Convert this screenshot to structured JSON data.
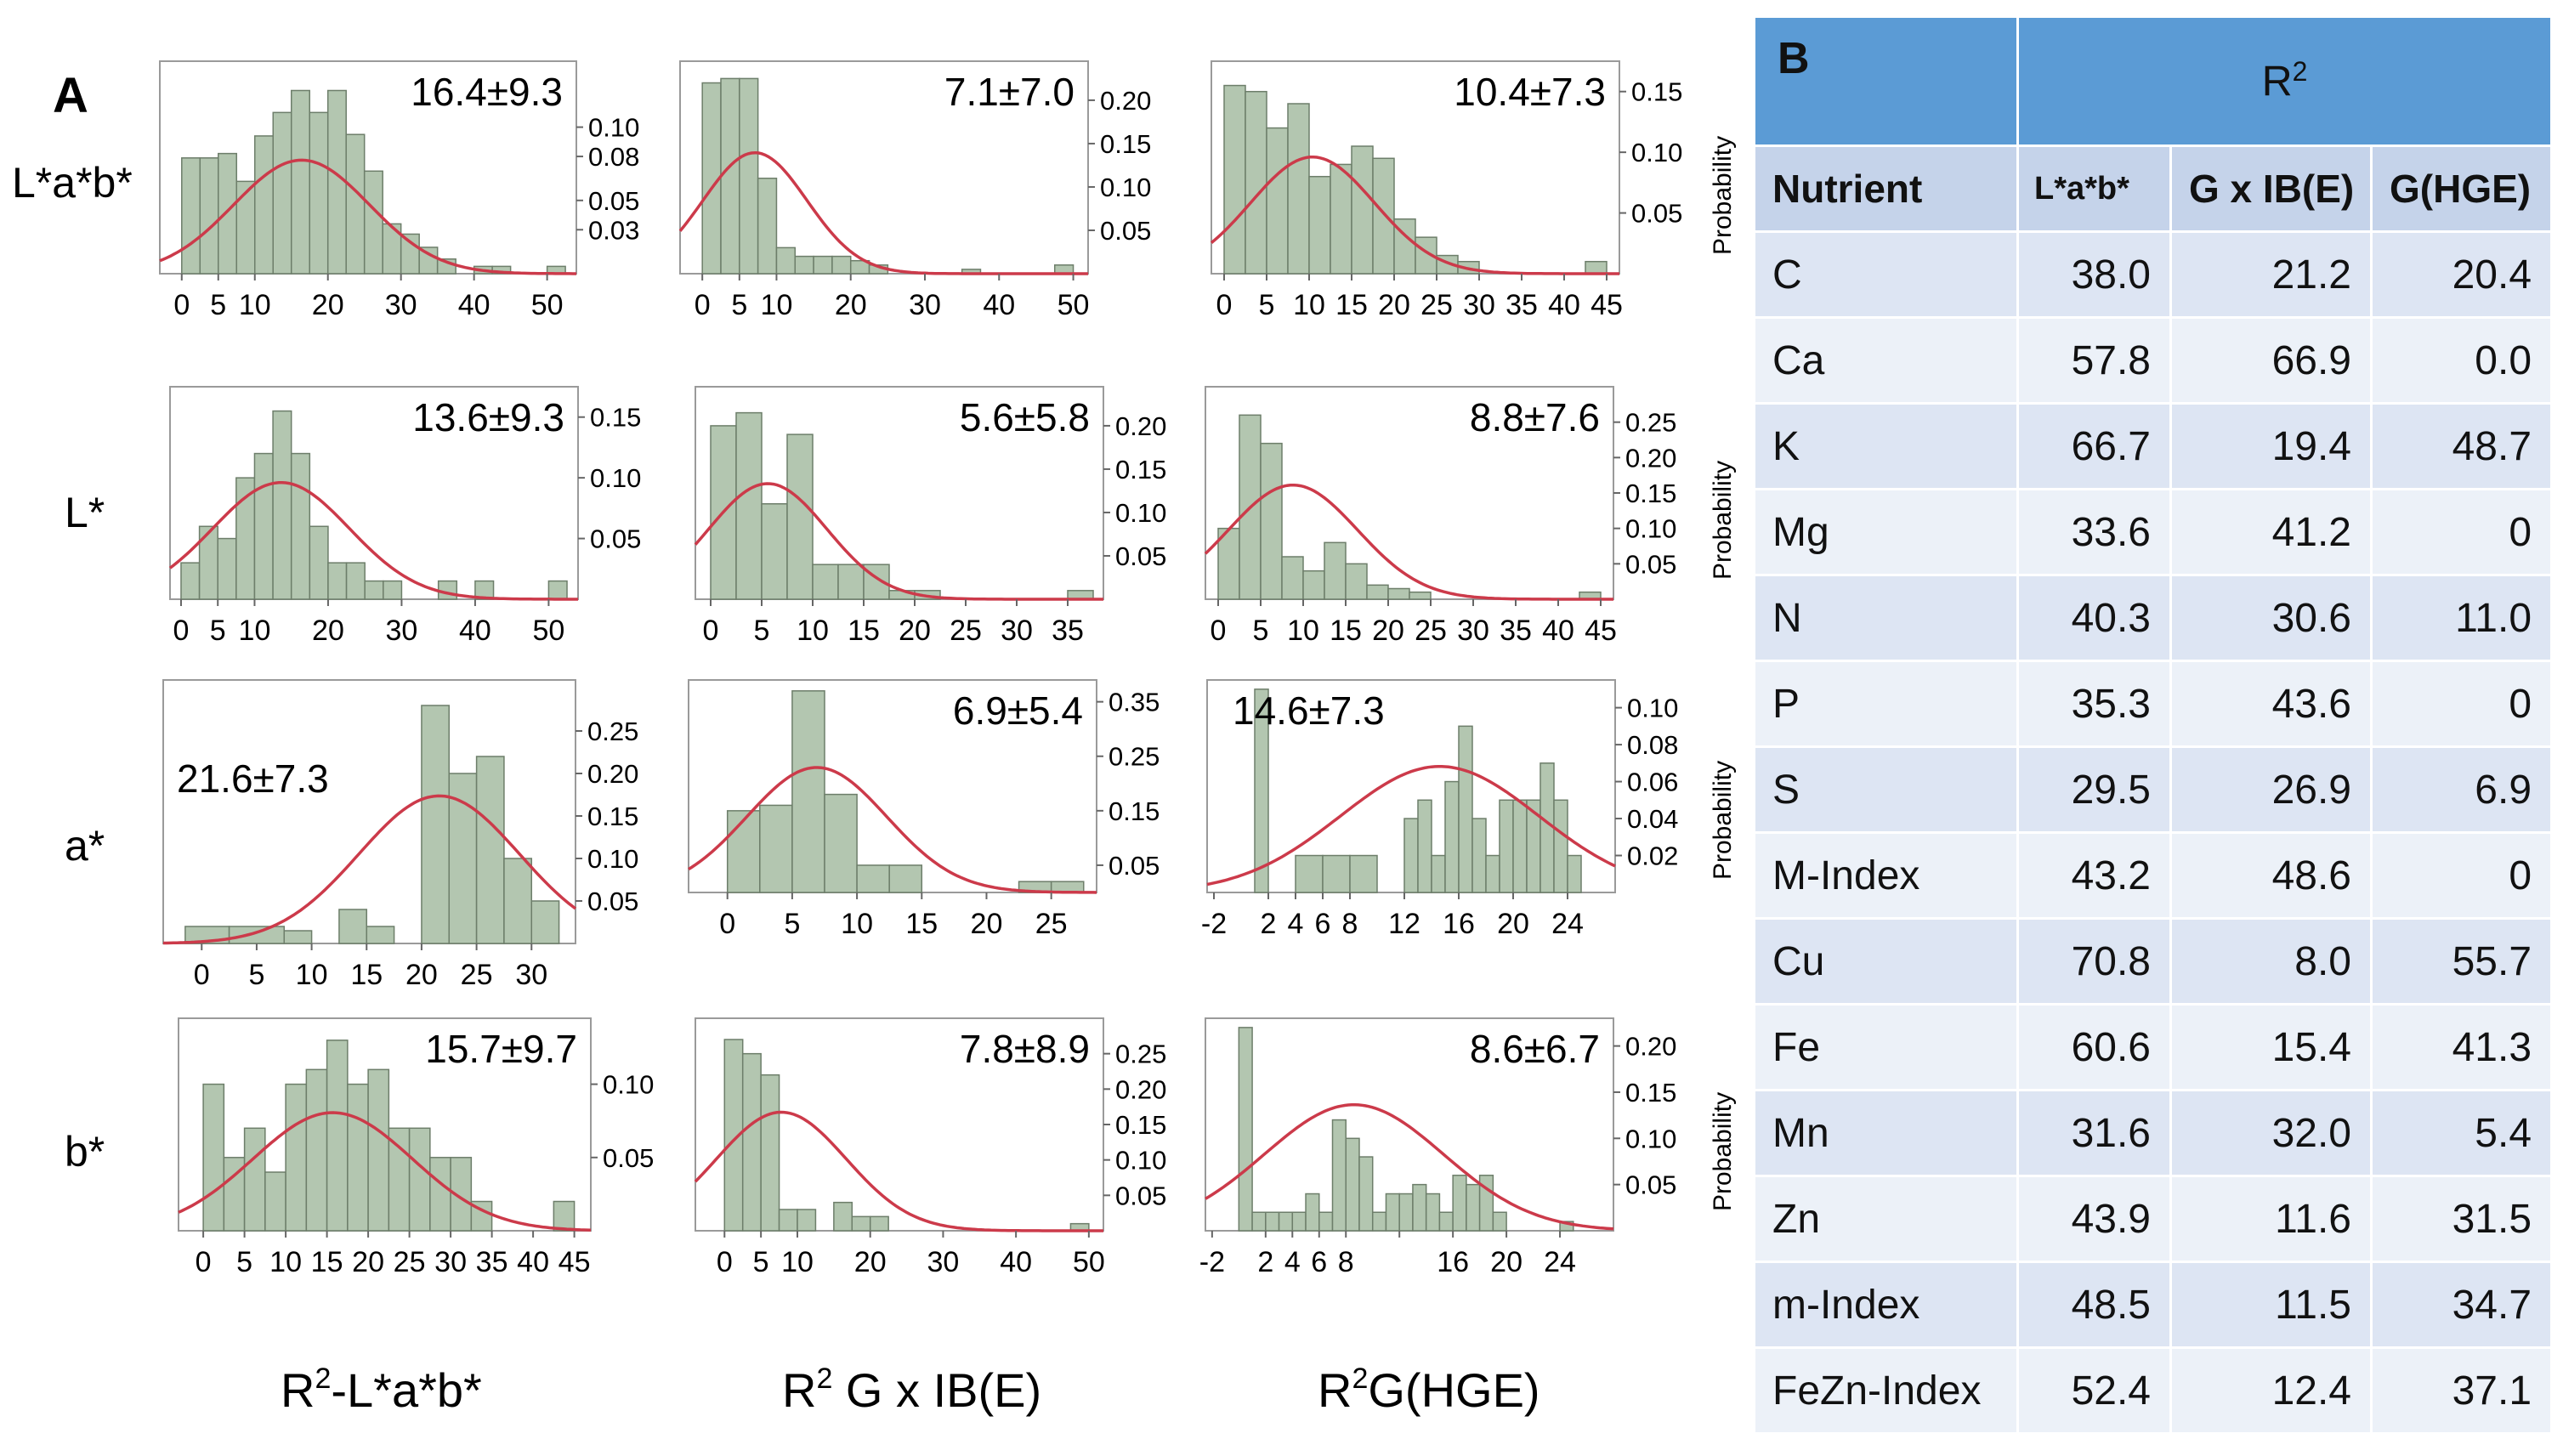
{
  "panel_a": {
    "label": "A",
    "row_labels": [
      "L*a*b*",
      "L*",
      "a*",
      "b*"
    ],
    "column_labels": [
      {
        "prefix": "R",
        "sup": "2",
        "suffix": "-L*a*b*"
      },
      {
        "prefix": "R",
        "sup": "2",
        "suffix": " G x IB(E)"
      },
      {
        "prefix": "R",
        "sup": "2",
        "suffix": "G(HGE)"
      }
    ],
    "side_label": "Probability"
  },
  "chart_data": [
    {
      "type": "bar",
      "id": "r0c0",
      "title": "16.4±9.3",
      "mean": 16.4,
      "sd": 9.3,
      "xlim": [
        -3,
        54
      ],
      "ylim": [
        0,
        0.145
      ],
      "xticks": [
        0,
        5,
        10,
        20,
        30,
        40,
        50
      ],
      "yticks": [
        0.03,
        0.05,
        0.08,
        0.1
      ],
      "ytick_labels": [
        "0.03",
        "0.05",
        "0.08",
        "0.10"
      ],
      "bins": [
        [
          0,
          2.5,
          0.079
        ],
        [
          2.5,
          5,
          0.079
        ],
        [
          5,
          7.5,
          0.082
        ],
        [
          7.5,
          10,
          0.063
        ],
        [
          10,
          12.5,
          0.094
        ],
        [
          12.5,
          15,
          0.11
        ],
        [
          15,
          17.5,
          0.125
        ],
        [
          17.5,
          20,
          0.11
        ],
        [
          20,
          22.5,
          0.125
        ],
        [
          22.5,
          25,
          0.095
        ],
        [
          25,
          27.5,
          0.07
        ],
        [
          27.5,
          30,
          0.034
        ],
        [
          30,
          32.5,
          0.027
        ],
        [
          32.5,
          35,
          0.018
        ],
        [
          35,
          37.5,
          0.01
        ],
        [
          40,
          42.5,
          0.005
        ],
        [
          42.5,
          45,
          0.005
        ],
        [
          50,
          52.5,
          0.005
        ]
      ]
    },
    {
      "type": "bar",
      "id": "r0c1",
      "title": "7.1±7.0",
      "mean": 7.1,
      "sd": 7.0,
      "xlim": [
        -3,
        52
      ],
      "ylim": [
        0,
        0.245
      ],
      "xticks": [
        0,
        5,
        10,
        20,
        30,
        40,
        50
      ],
      "yticks": [
        0.05,
        0.1,
        0.15,
        0.2
      ],
      "ytick_labels": [
        "0.05",
        "0.10",
        "0.15",
        "0.20"
      ],
      "bins": [
        [
          0,
          2.5,
          0.22
        ],
        [
          2.5,
          5,
          0.225
        ],
        [
          5,
          7.5,
          0.225
        ],
        [
          7.5,
          10,
          0.11
        ],
        [
          10,
          12.5,
          0.03
        ],
        [
          12.5,
          15,
          0.02
        ],
        [
          15,
          17.5,
          0.02
        ],
        [
          17.5,
          20,
          0.02
        ],
        [
          20,
          22.5,
          0.015
        ],
        [
          22.5,
          25,
          0.01
        ],
        [
          35,
          37.5,
          0.005
        ],
        [
          47.5,
          50,
          0.01
        ]
      ]
    },
    {
      "type": "bar",
      "id": "r0c2",
      "title": "10.4±7.3",
      "mean": 10.4,
      "sd": 7.3,
      "xlim": [
        -1.5,
        46.5
      ],
      "ylim": [
        0,
        0.175
      ],
      "xticks": [
        0,
        5,
        10,
        15,
        20,
        25,
        30,
        35,
        40,
        45
      ],
      "yticks": [
        0.05,
        0.1,
        0.15
      ],
      "ytick_labels": [
        "0.05",
        "0.10",
        "0.15"
      ],
      "bins": [
        [
          0,
          2.5,
          0.155
        ],
        [
          2.5,
          5,
          0.15
        ],
        [
          5,
          7.5,
          0.12
        ],
        [
          7.5,
          10,
          0.14
        ],
        [
          10,
          12.5,
          0.08
        ],
        [
          12.5,
          15,
          0.09
        ],
        [
          15,
          17.5,
          0.105
        ],
        [
          17.5,
          20,
          0.095
        ],
        [
          20,
          22.5,
          0.045
        ],
        [
          22.5,
          25,
          0.03
        ],
        [
          25,
          27.5,
          0.015
        ],
        [
          27.5,
          30,
          0.01
        ],
        [
          42.5,
          45,
          0.01
        ]
      ]
    },
    {
      "type": "bar",
      "id": "r1c0",
      "title": "13.6±9.3",
      "mean": 13.6,
      "sd": 9.3,
      "xlim": [
        -1.5,
        54
      ],
      "ylim": [
        0,
        0.175
      ],
      "xticks": [
        0,
        5,
        10,
        20,
        30,
        40,
        50
      ],
      "yticks": [
        0.05,
        0.1,
        0.15
      ],
      "ytick_labels": [
        "0.05",
        "0.10",
        "0.15"
      ],
      "bins": [
        [
          0,
          2.5,
          0.03
        ],
        [
          2.5,
          5,
          0.06
        ],
        [
          5,
          7.5,
          0.05
        ],
        [
          7.5,
          10,
          0.1
        ],
        [
          10,
          12.5,
          0.12
        ],
        [
          12.5,
          15,
          0.155
        ],
        [
          15,
          17.5,
          0.12
        ],
        [
          17.5,
          20,
          0.06
        ],
        [
          20,
          22.5,
          0.03
        ],
        [
          22.5,
          25,
          0.03
        ],
        [
          25,
          27.5,
          0.015
        ],
        [
          27.5,
          30,
          0.015
        ],
        [
          35,
          37.5,
          0.015
        ],
        [
          40,
          42.5,
          0.015
        ],
        [
          50,
          52.5,
          0.015
        ]
      ]
    },
    {
      "type": "bar",
      "id": "r1c1",
      "title": "5.6±5.8",
      "mean": 5.6,
      "sd": 5.8,
      "xlim": [
        -1.5,
        38.5
      ],
      "ylim": [
        0,
        0.245
      ],
      "xticks": [
        0,
        5,
        10,
        15,
        20,
        25,
        30,
        35
      ],
      "yticks": [
        0.05,
        0.1,
        0.15,
        0.2
      ],
      "ytick_labels": [
        "0.05",
        "0.10",
        "0.15",
        "0.20"
      ],
      "bins": [
        [
          0,
          2.5,
          0.2
        ],
        [
          2.5,
          5,
          0.215
        ],
        [
          5,
          7.5,
          0.11
        ],
        [
          7.5,
          10,
          0.19
        ],
        [
          10,
          12.5,
          0.04
        ],
        [
          12.5,
          15,
          0.04
        ],
        [
          15,
          17.5,
          0.04
        ],
        [
          17.5,
          20,
          0.01
        ],
        [
          20,
          22.5,
          0.01
        ],
        [
          35,
          37.5,
          0.01
        ]
      ]
    },
    {
      "type": "bar",
      "id": "r1c2",
      "title": "8.8±7.6",
      "mean": 8.8,
      "sd": 7.6,
      "xlim": [
        -1.5,
        46.5
      ],
      "ylim": [
        0,
        0.3
      ],
      "xticks": [
        0,
        5,
        10,
        15,
        20,
        25,
        30,
        35,
        40,
        45
      ],
      "yticks": [
        0.05,
        0.1,
        0.15,
        0.2,
        0.25
      ],
      "ytick_labels": [
        "0.05",
        "0.10",
        "0.15",
        "0.20",
        "0.25"
      ],
      "bins": [
        [
          0,
          2.5,
          0.1
        ],
        [
          2.5,
          5,
          0.26
        ],
        [
          5,
          7.5,
          0.22
        ],
        [
          7.5,
          10,
          0.06
        ],
        [
          10,
          12.5,
          0.04
        ],
        [
          12.5,
          15,
          0.08
        ],
        [
          15,
          17.5,
          0.05
        ],
        [
          17.5,
          20,
          0.02
        ],
        [
          20,
          22.5,
          0.015
        ],
        [
          22.5,
          25,
          0.01
        ],
        [
          42.5,
          45,
          0.01
        ]
      ]
    },
    {
      "type": "bar",
      "id": "r2c0",
      "title": "21.6±7.3",
      "mean": 21.6,
      "sd": 7.3,
      "xlim": [
        -3.5,
        34
      ],
      "ylim": [
        0,
        0.31
      ],
      "xticks": [
        0,
        5,
        10,
        15,
        20,
        25,
        30
      ],
      "yticks": [
        0.05,
        0.1,
        0.15,
        0.2,
        0.25
      ],
      "ytick_labels": [
        "0.05",
        "0.10",
        "0.15",
        "0.20",
        "0.25"
      ],
      "bins": [
        [
          -1.5,
          2.5,
          0.02
        ],
        [
          2.5,
          7.5,
          0.02
        ],
        [
          7.5,
          10,
          0.015
        ],
        [
          12.5,
          15,
          0.04
        ],
        [
          15,
          17.5,
          0.02
        ],
        [
          20,
          22.5,
          0.28
        ],
        [
          22.5,
          25,
          0.2
        ],
        [
          25,
          27.5,
          0.22
        ],
        [
          27.5,
          30,
          0.1
        ],
        [
          30,
          32.5,
          0.05
        ]
      ]
    },
    {
      "type": "bar",
      "id": "r2c1",
      "title": "6.9±5.4",
      "mean": 6.9,
      "sd": 5.4,
      "xlim": [
        -3,
        28.5
      ],
      "ylim": [
        0,
        0.39
      ],
      "xticks": [
        0,
        5,
        10,
        15,
        20,
        25
      ],
      "yticks": [
        0.05,
        0.15,
        0.25,
        0.35
      ],
      "ytick_labels": [
        "0.05",
        "0.15",
        "0.25",
        "0.35"
      ],
      "bins": [
        [
          0,
          2.5,
          0.15
        ],
        [
          2.5,
          5,
          0.16
        ],
        [
          5,
          7.5,
          0.37
        ],
        [
          7.5,
          10,
          0.18
        ],
        [
          10,
          12.5,
          0.05
        ],
        [
          12.5,
          15,
          0.05
        ],
        [
          22.5,
          25,
          0.02
        ],
        [
          25,
          27.5,
          0.02
        ]
      ]
    },
    {
      "type": "bar",
      "id": "r2c2",
      "title": "14.6±7.3",
      "mean": 14.6,
      "sd": 7.3,
      "xlim": [
        -2.5,
        27.5
      ],
      "ylim": [
        0,
        0.115
      ],
      "xticks": [
        -2,
        2,
        4,
        6,
        8,
        12,
        16,
        20,
        24
      ],
      "yticks": [
        0.02,
        0.04,
        0.06,
        0.08,
        0.1
      ],
      "ytick_labels": [
        "0.02",
        "0.04",
        "0.06",
        "0.08",
        "0.10"
      ],
      "bins": [
        [
          1,
          2,
          0.11
        ],
        [
          4,
          6,
          0.02
        ],
        [
          6,
          8,
          0.02
        ],
        [
          8,
          10,
          0.02
        ],
        [
          12,
          13,
          0.04
        ],
        [
          13,
          14,
          0.05
        ],
        [
          14,
          15,
          0.02
        ],
        [
          15,
          16,
          0.06
        ],
        [
          16,
          17,
          0.09
        ],
        [
          17,
          18,
          0.04
        ],
        [
          18,
          19,
          0.02
        ],
        [
          19,
          20,
          0.05
        ],
        [
          20,
          21,
          0.05
        ],
        [
          21,
          22,
          0.05
        ],
        [
          22,
          23,
          0.07
        ],
        [
          23,
          24,
          0.05
        ],
        [
          24,
          25,
          0.02
        ]
      ]
    },
    {
      "type": "bar",
      "id": "r3c0",
      "title": "15.7±9.7",
      "mean": 15.7,
      "sd": 9.7,
      "xlim": [
        -3,
        47
      ],
      "ylim": [
        0,
        0.145
      ],
      "xticks": [
        0,
        5,
        10,
        15,
        20,
        25,
        30,
        35,
        40,
        45
      ],
      "yticks": [
        0.05,
        0.1
      ],
      "ytick_labels": [
        "0.05",
        "0.10"
      ],
      "bins": [
        [
          0,
          2.5,
          0.1
        ],
        [
          2.5,
          5,
          0.05
        ],
        [
          5,
          7.5,
          0.07
        ],
        [
          7.5,
          10,
          0.04
        ],
        [
          10,
          12.5,
          0.1
        ],
        [
          12.5,
          15,
          0.11
        ],
        [
          15,
          17.5,
          0.13
        ],
        [
          17.5,
          20,
          0.1
        ],
        [
          20,
          22.5,
          0.11
        ],
        [
          22.5,
          25,
          0.07
        ],
        [
          25,
          27.5,
          0.07
        ],
        [
          27.5,
          30,
          0.05
        ],
        [
          30,
          32.5,
          0.05
        ],
        [
          32.5,
          35,
          0.02
        ],
        [
          42.5,
          45,
          0.02
        ]
      ]
    },
    {
      "type": "bar",
      "id": "r3c1",
      "title": "7.8±8.9",
      "mean": 7.8,
      "sd": 8.9,
      "xlim": [
        -4,
        52
      ],
      "ylim": [
        0,
        0.3
      ],
      "xticks": [
        0,
        5,
        10,
        20,
        30,
        40,
        50
      ],
      "yticks": [
        0.05,
        0.1,
        0.15,
        0.2,
        0.25
      ],
      "ytick_labels": [
        "0.05",
        "0.10",
        "0.15",
        "0.20",
        "0.25"
      ],
      "bins": [
        [
          0,
          2.5,
          0.27
        ],
        [
          2.5,
          5,
          0.25
        ],
        [
          5,
          7.5,
          0.22
        ],
        [
          7.5,
          10,
          0.03
        ],
        [
          10,
          12.5,
          0.03
        ],
        [
          15,
          17.5,
          0.04
        ],
        [
          17.5,
          20,
          0.02
        ],
        [
          20,
          22.5,
          0.02
        ],
        [
          47.5,
          50,
          0.01
        ]
      ]
    },
    {
      "type": "bar",
      "id": "r3c2",
      "title": "8.6±6.7",
      "mean": 8.6,
      "sd": 6.7,
      "xlim": [
        -2.5,
        28
      ],
      "ylim": [
        0,
        0.23
      ],
      "xticks": [
        -2,
        2,
        4,
        6,
        8,
        12,
        16,
        20,
        24
      ],
      "xtick_labels": [
        "-2",
        "2",
        "4",
        "6",
        "8",
        "",
        "16",
        "20",
        "24"
      ],
      "yticks": [
        0.05,
        0.1,
        0.15,
        0.2
      ],
      "ytick_labels": [
        "0.05",
        "0.10",
        "0.15",
        "0.20"
      ],
      "bins": [
        [
          0,
          1,
          0.22
        ],
        [
          1,
          2,
          0.02
        ],
        [
          2,
          3,
          0.02
        ],
        [
          3,
          4,
          0.02
        ],
        [
          4,
          5,
          0.02
        ],
        [
          5,
          6,
          0.04
        ],
        [
          6,
          7,
          0.02
        ],
        [
          7,
          8,
          0.12
        ],
        [
          8,
          9,
          0.1
        ],
        [
          9,
          10,
          0.08
        ],
        [
          10,
          11,
          0.02
        ],
        [
          11,
          12,
          0.04
        ],
        [
          12,
          13,
          0.04
        ],
        [
          13,
          14,
          0.05
        ],
        [
          14,
          15,
          0.04
        ],
        [
          15,
          16,
          0.02
        ],
        [
          16,
          17,
          0.06
        ],
        [
          17,
          18,
          0.05
        ],
        [
          18,
          19,
          0.06
        ],
        [
          19,
          20,
          0.02
        ],
        [
          24,
          25,
          0.01
        ]
      ]
    }
  ],
  "panel_b": {
    "label": "B",
    "header_r": "R",
    "header_sup": "2",
    "columns": [
      "Nutrient",
      "L*a*b*",
      "G x IB(E)",
      "G(HGE)"
    ],
    "rows": [
      [
        "C",
        "38.0",
        "21.2",
        "20.4"
      ],
      [
        "Ca",
        "57.8",
        "66.9",
        "0.0"
      ],
      [
        "K",
        "66.7",
        "19.4",
        "48.7"
      ],
      [
        "Mg",
        "33.6",
        "41.2",
        "0"
      ],
      [
        "N",
        "40.3",
        "30.6",
        "11.0"
      ],
      [
        "P",
        "35.3",
        "43.6",
        "0"
      ],
      [
        "S",
        "29.5",
        "26.9",
        "6.9"
      ],
      [
        "M-Index",
        "43.2",
        "48.6",
        "0"
      ],
      [
        "Cu",
        "70.8",
        "8.0",
        "55.7"
      ],
      [
        "Fe",
        "60.6",
        "15.4",
        "41.3"
      ],
      [
        "Mn",
        "31.6",
        "32.0",
        "5.4"
      ],
      [
        "Zn",
        "43.9",
        "11.6",
        "31.5"
      ],
      [
        "m-Index",
        "48.5",
        "11.5",
        "34.7"
      ],
      [
        "FeZn-Index",
        "52.4",
        "12.4",
        "37.1"
      ]
    ]
  },
  "colors": {
    "bar_fill": "#b3c6b0",
    "bar_stroke": "#6d7e6a",
    "curve": "#cc3a4a",
    "frame": "#9a9a9a"
  }
}
